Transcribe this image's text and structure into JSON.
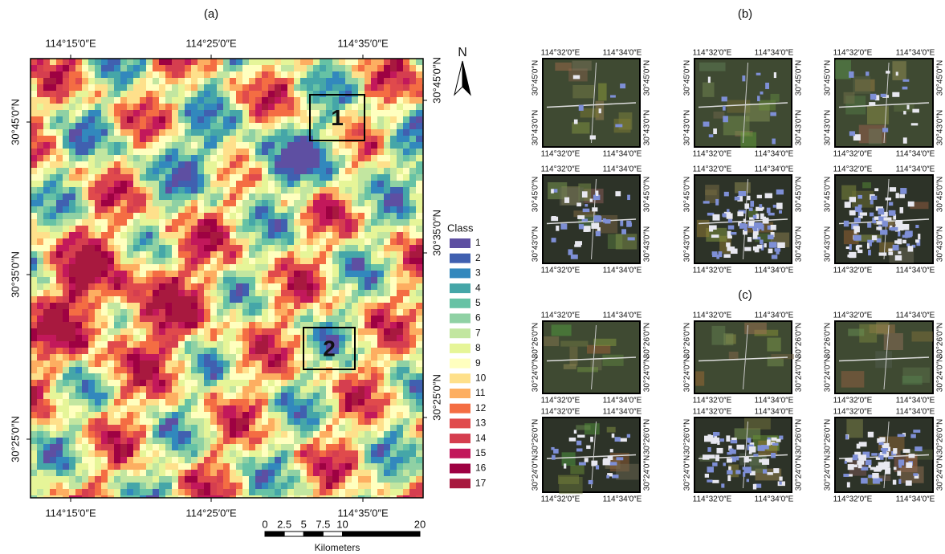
{
  "panel_a": {
    "label": "(a)",
    "lon_labels": [
      "114°15′0″E",
      "114°25′0″E",
      "114°35′0″E"
    ],
    "lat_labels": [
      "30°45′0″N",
      "30°35′0″N",
      "30°25′0″N"
    ],
    "north": "N",
    "boxes": [
      "1",
      "2"
    ],
    "legend": {
      "title": "Class",
      "classes": [
        1,
        2,
        3,
        4,
        5,
        6,
        7,
        8,
        9,
        10,
        11,
        12,
        13,
        14,
        15,
        16,
        17
      ],
      "colors": [
        "#5e4fa2",
        "#4060b0",
        "#3288bd",
        "#45a6a8",
        "#66c2a5",
        "#8fd1a4",
        "#c2e6a0",
        "#e6f598",
        "#ffffbf",
        "#fee08b",
        "#fdae61",
        "#f46d43",
        "#e04a4c",
        "#d53e4f",
        "#c2185b",
        "#9e0142",
        "#a8193f"
      ]
    },
    "scale_bar": {
      "labels": [
        0,
        2.5,
        5,
        7.5,
        10,
        20
      ],
      "unit": "Kilometers"
    }
  },
  "panel_b": {
    "label": "(b)",
    "lon_labels": [
      "114°32′0″E",
      "114°34′0″E"
    ],
    "lat_labels": [
      "30°45′0″N",
      "30°43′0″N"
    ]
  },
  "panel_c": {
    "label": "(c)",
    "lon_labels": [
      "114°32′0″E",
      "114°34′0″E"
    ],
    "lat_labels": [
      "30°26′0″N",
      "30°24′0″N"
    ]
  }
}
